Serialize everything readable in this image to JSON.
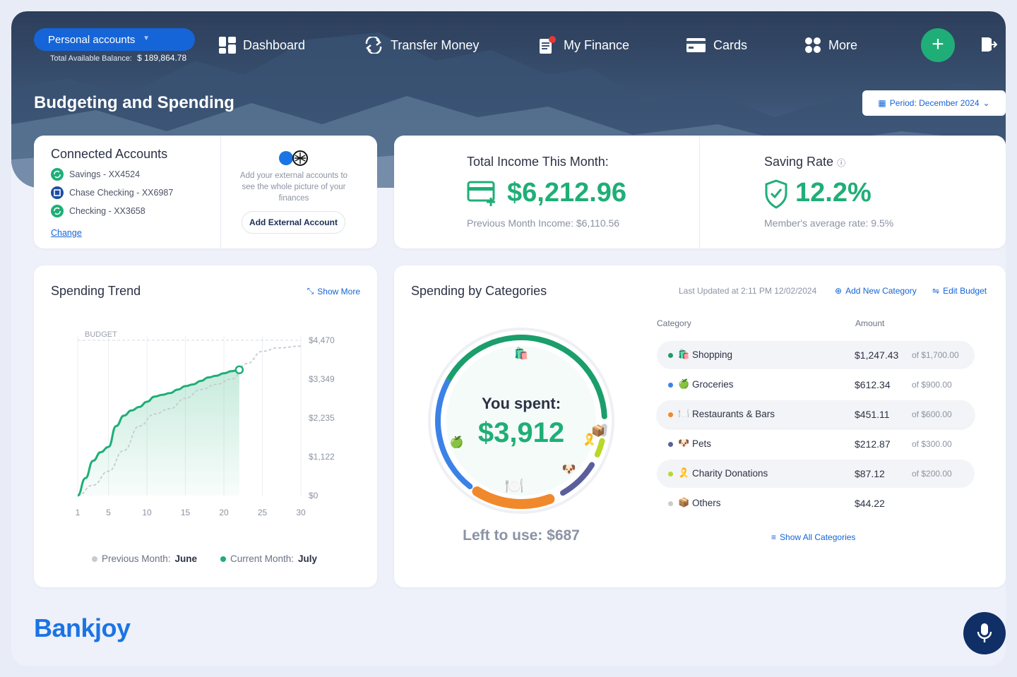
{
  "header": {
    "account_selector": "Personal accounts",
    "balance_label": "Total Available Balance:",
    "balance_value": "$ 189,864.78",
    "nav": [
      {
        "label": "Dashboard",
        "icon": "dashboard-icon"
      },
      {
        "label": "Transfer Money",
        "icon": "transfer-icon"
      },
      {
        "label": "My Finance",
        "icon": "finance-icon"
      },
      {
        "label": "Cards",
        "icon": "card-icon"
      },
      {
        "label": "More",
        "icon": "more-icon"
      }
    ],
    "add_label": "+",
    "page_title": "Budgeting and Spending",
    "period_label": "Period: December 2024"
  },
  "connected_accounts": {
    "title": "Connected Accounts",
    "accounts": [
      {
        "name": "Savings - XX4524",
        "icon": "sync-icon"
      },
      {
        "name": "Chase Checking - XX6987",
        "icon": "chase-icon"
      },
      {
        "name": "Checking - XX3658",
        "icon": "sync-icon"
      }
    ],
    "change_label": "Change",
    "external_text": "Add your external accounts to see the whole picture of your finances",
    "add_external_label": "Add External Account"
  },
  "income": {
    "title": "Total Income This Month:",
    "value": "$6,212.96",
    "previous": "Previous Month Income: $6,110.56"
  },
  "saving": {
    "title": "Saving Rate",
    "value": "12.2%",
    "average": "Member's average rate: 9.5%"
  },
  "trend": {
    "title": "Spending Trend",
    "show_more": "Show More",
    "legend_prev_label": "Previous Month:",
    "legend_prev_value": "June",
    "legend_curr_label": "Current Month:",
    "legend_curr_value": "July"
  },
  "chart_data": {
    "type": "area",
    "title": "Spending Trend",
    "x_ticks": [
      1,
      5,
      10,
      15,
      20,
      25,
      30
    ],
    "y_ticks": [
      "$0",
      "$1,122",
      "$2,235",
      "$3,349",
      "$4,470"
    ],
    "ylim": [
      0,
      4470
    ],
    "budget_label": "BUDGET",
    "budget_value": 4470,
    "series": [
      {
        "name": "Current Month: July",
        "color": "#1fae77",
        "x": [
          1,
          2,
          3,
          4,
          5,
          6,
          7,
          8,
          9,
          10,
          11,
          12,
          13,
          14,
          15,
          16,
          17,
          18,
          19,
          20,
          21,
          22
        ],
        "y": [
          0,
          500,
          1000,
          1250,
          1400,
          2000,
          2300,
          2450,
          2550,
          2700,
          2850,
          2900,
          2950,
          3050,
          3150,
          3200,
          3300,
          3400,
          3450,
          3520,
          3580,
          3620
        ]
      },
      {
        "name": "Previous Month: June",
        "color": "#c5cad3",
        "x": [
          1,
          3,
          5,
          7,
          9,
          11,
          13,
          15,
          17,
          19,
          21,
          23,
          25,
          27,
          30
        ],
        "y": [
          0,
          300,
          700,
          1300,
          2000,
          2350,
          2500,
          2800,
          3050,
          3200,
          3350,
          3800,
          4150,
          4250,
          4300
        ]
      }
    ]
  },
  "categories": {
    "title": "Spending by Categories",
    "last_updated": "Last Updated at 2:11 PM 12/02/2024",
    "add_new": "Add New Category",
    "edit_budget": "Edit Budget",
    "col_category": "Category",
    "col_amount": "Amount",
    "spent_label": "You spent:",
    "spent_value": "$3,912",
    "left_label": "Left to use: $687",
    "show_all": "Show All Categories",
    "rows": [
      {
        "name": "Shopping",
        "icon": "🛍️",
        "color": "#1a9e6b",
        "amount": "$1,247.43",
        "limit": "of $1,700.00"
      },
      {
        "name": "Groceries",
        "icon": "🍏",
        "color": "#3c82e6",
        "amount": "$612.34",
        "limit": "of $900.00"
      },
      {
        "name": "Restaurants & Bars",
        "icon": "🍽️",
        "color": "#f0892c",
        "amount": "$451.11",
        "limit": "of $600.00"
      },
      {
        "name": "Pets",
        "icon": "🐶",
        "color": "#5a5f9c",
        "amount": "$212.87",
        "limit": "of $300.00"
      },
      {
        "name": "Charity Donations",
        "icon": "🎗️",
        "color": "#b8d82a",
        "amount": "$87.12",
        "limit": "of $200.00"
      },
      {
        "name": "Others",
        "icon": "📦",
        "color": "#c9ccd3",
        "amount": "$44.22",
        "limit": ""
      }
    ]
  },
  "brand": {
    "logo": "Bankjoy",
    "accent": "#1fae77",
    "primary": "#1565d8"
  }
}
